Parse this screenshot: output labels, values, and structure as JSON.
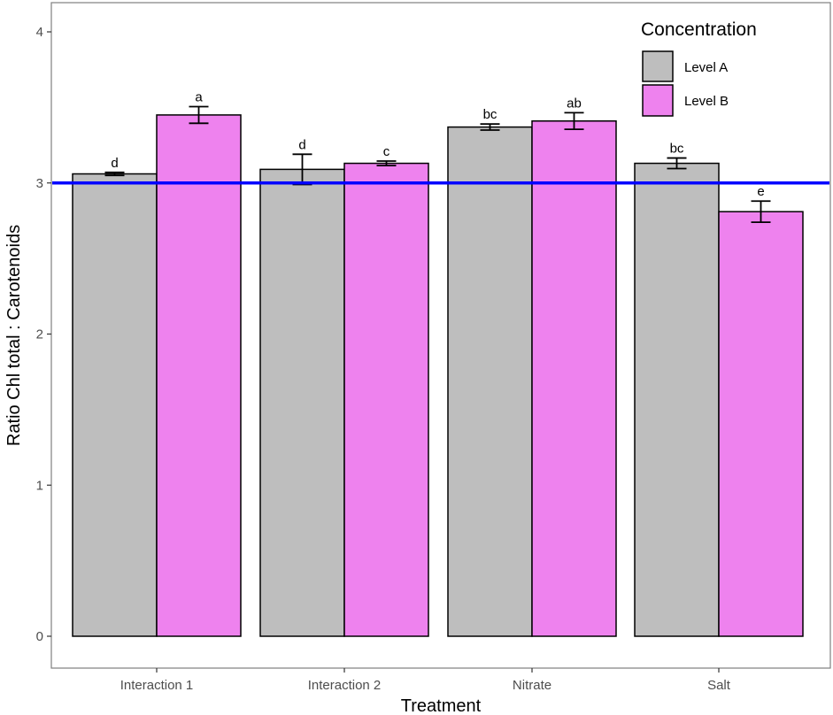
{
  "chart_data": {
    "type": "bar",
    "title": "",
    "xlabel": "Treatment",
    "ylabel": "Ratio Chl total : Carotenoids",
    "ylim": [
      -0.1,
      4.2
    ],
    "yticks": [
      0,
      1,
      2,
      3,
      4
    ],
    "grid": false,
    "categories": [
      "Interaction 1",
      "Interaction 2",
      "Nitrate",
      "Salt"
    ],
    "legend": {
      "title": "Concentration",
      "position": "top-right"
    },
    "series": [
      {
        "name": "Level A",
        "color": "#bebebe",
        "values": [
          3.06,
          3.09,
          3.37,
          3.13
        ],
        "errors": [
          0.01,
          0.1,
          0.02,
          0.035
        ],
        "labels": [
          "d",
          "d",
          "bc",
          "bc"
        ]
      },
      {
        "name": "Level B",
        "color": "#ee82ee",
        "values": [
          3.45,
          3.13,
          3.41,
          2.81
        ],
        "errors": [
          0.055,
          0.015,
          0.055,
          0.07
        ],
        "labels": [
          "a",
          "c",
          "ab",
          "e"
        ]
      }
    ],
    "reference_line": {
      "y": 3,
      "color": "#0000ff"
    }
  }
}
